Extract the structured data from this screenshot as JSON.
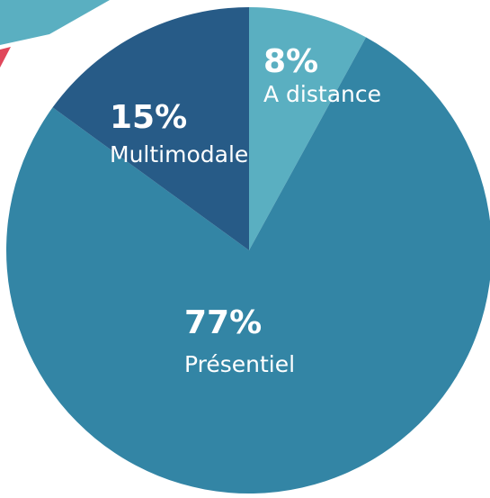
{
  "chart_data": {
    "type": "pie",
    "categories": [
      "A distance",
      "Présentiel",
      "Multimodale"
    ],
    "values": [
      8,
      77,
      15
    ],
    "value_labels": [
      "8%",
      "77%",
      "15%"
    ],
    "colors": [
      "#5aafc1",
      "#3385a5",
      "#275b87"
    ]
  }
}
